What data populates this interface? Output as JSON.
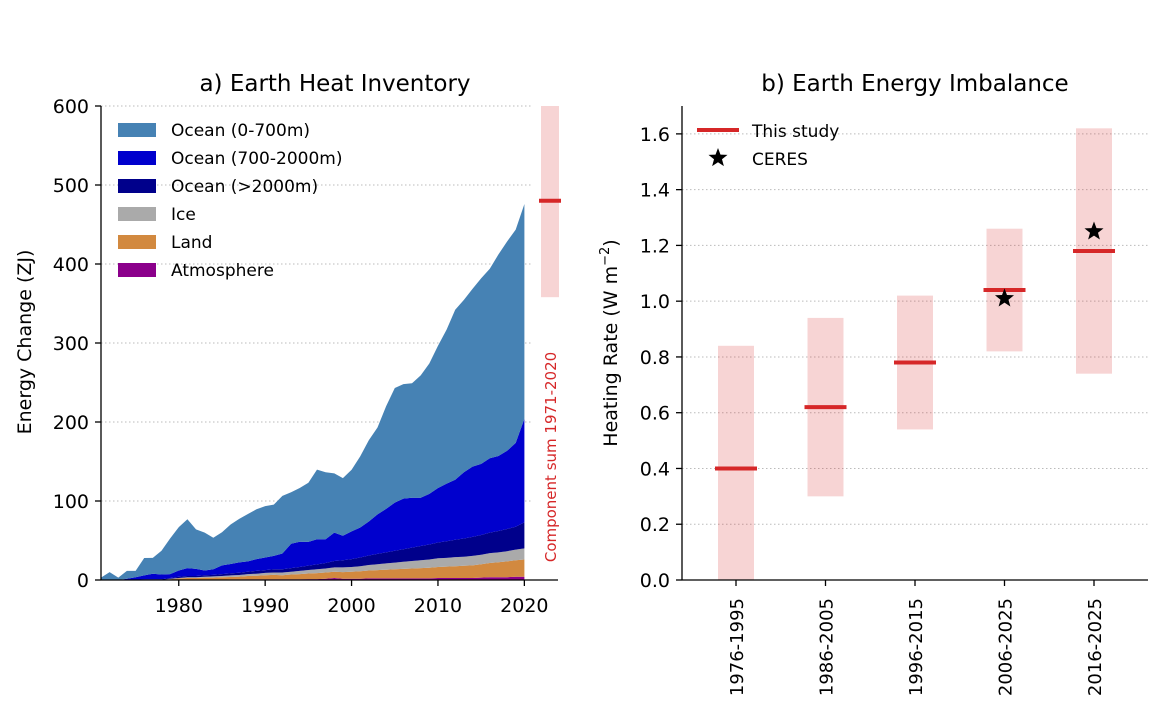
{
  "chart_data": [
    {
      "type": "area",
      "title": "a) Earth Heat Inventory",
      "xlabel": "",
      "ylabel": "Energy Change (ZJ)",
      "xlim": [
        1971,
        2021
      ],
      "ylim": [
        0,
        600
      ],
      "x_ticks": [
        1980,
        1990,
        2000,
        2010,
        2020
      ],
      "y_ticks": [
        0,
        100,
        200,
        300,
        400,
        500,
        600
      ],
      "grid": "horizontal dotted",
      "legend_position": "top-left",
      "stacked": true,
      "x": [
        1971,
        1972,
        1973,
        1974,
        1975,
        1976,
        1977,
        1978,
        1979,
        1980,
        1981,
        1982,
        1983,
        1984,
        1985,
        1986,
        1987,
        1988,
        1989,
        1990,
        1991,
        1992,
        1993,
        1994,
        1995,
        1996,
        1997,
        1998,
        1999,
        2000,
        2001,
        2002,
        2003,
        2004,
        2005,
        2006,
        2007,
        2008,
        2009,
        2010,
        2011,
        2012,
        2013,
        2014,
        2015,
        2016,
        2017,
        2018,
        2019,
        2020
      ],
      "series": [
        {
          "name": "Atmosphere",
          "color": "#8B008B",
          "values": [
            0,
            0,
            0,
            0,
            0,
            0,
            0,
            0,
            0,
            0.5,
            0.5,
            0.5,
            0.5,
            0.5,
            0.5,
            0.8,
            0.8,
            1,
            1,
            1,
            1,
            1,
            1,
            1,
            1.2,
            1.2,
            1.5,
            2.5,
            1.5,
            1.5,
            1.5,
            2,
            2,
            2,
            2,
            2,
            2,
            2,
            2,
            2.5,
            2.5,
            2.5,
            2.5,
            2.5,
            3,
            3.5,
            3.5,
            3.5,
            4,
            4
          ]
        },
        {
          "name": "Land",
          "color": "#D2893F",
          "values": [
            0,
            0,
            0,
            0,
            0,
            0,
            0,
            0,
            1,
            1.5,
            2,
            2,
            2.5,
            2.5,
            3,
            3,
            3.5,
            4,
            4.5,
            5,
            5.5,
            5,
            6,
            6.5,
            7,
            7.5,
            8,
            8,
            8.5,
            9,
            9.5,
            10,
            10.5,
            11,
            11.5,
            12,
            12.5,
            13,
            13.5,
            14,
            14.5,
            15,
            15.5,
            16,
            17,
            18,
            19,
            20,
            21,
            22
          ]
        },
        {
          "name": "Ice",
          "color": "#AAAAAA",
          "values": [
            0,
            0,
            0,
            0,
            0,
            0,
            0,
            0,
            0.5,
            0.5,
            1,
            1,
            1,
            1.5,
            1.5,
            2,
            2,
            2.5,
            2.5,
            3,
            3,
            3.5,
            3.5,
            4,
            4.5,
            5,
            5,
            5.5,
            6,
            6,
            6.5,
            7,
            7.5,
            8,
            8.5,
            9,
            9.5,
            10,
            10.5,
            11,
            11,
            11.5,
            11.5,
            12,
            12,
            12.5,
            12.5,
            13,
            13.5,
            14
          ]
        },
        {
          "name": "Ocean (>2000m)",
          "color": "#00008B",
          "values": [
            0,
            0,
            0,
            0.5,
            0.5,
            0.8,
            1,
            1,
            1,
            1.5,
            1.5,
            1.5,
            2,
            2,
            2.5,
            2.5,
            3,
            3,
            3.5,
            3.5,
            4,
            4,
            4.5,
            5,
            5.5,
            6,
            7,
            8,
            9,
            10,
            11,
            12,
            13,
            14,
            15,
            16,
            17,
            18,
            19,
            20,
            21,
            22,
            23,
            24,
            25,
            26,
            27,
            28,
            29,
            33
          ]
        },
        {
          "name": "Ocean (700-2000m)",
          "color": "#0000CD",
          "values": [
            0,
            0,
            0,
            1,
            3,
            5,
            7,
            6,
            5,
            8,
            10,
            9,
            6,
            7,
            11,
            12,
            13,
            13,
            15,
            16,
            17,
            20,
            31,
            32,
            30,
            32,
            30,
            36,
            31,
            35,
            38,
            43,
            50,
            55,
            61,
            64,
            63,
            61,
            64,
            69,
            73,
            76,
            84,
            89,
            90,
            94,
            95,
            99,
            106,
            131
          ]
        },
        {
          "name": "Ocean (0-700m)",
          "color": "#4682B4",
          "values": [
            3,
            10,
            3,
            10,
            8,
            22,
            20,
            30,
            45,
            55,
            62,
            50,
            48,
            40,
            42,
            50,
            55,
            60,
            63,
            65,
            65,
            73,
            65,
            68,
            75,
            88,
            85,
            75,
            73,
            78,
            90,
            103,
            110,
            130,
            145,
            145,
            145,
            155,
            165,
            180,
            195,
            215,
            218,
            225,
            235,
            240,
            255,
            265,
            270,
            272
          ]
        }
      ],
      "annotation_text": "Component sum 1971-2020",
      "component_sum": {
        "central": 480,
        "low": 358,
        "high": 600,
        "color": "#d62728"
      }
    },
    {
      "type": "bar",
      "title": "b) Earth Energy Imbalance",
      "xlabel": "",
      "ylabel": "Heating Rate (W m",
      "ylabel_sup": "−2",
      "ylabel_tail": ")",
      "ylim": [
        0.0,
        1.7
      ],
      "y_ticks": [
        "0.0",
        "0.2",
        "0.4",
        "0.6",
        "0.8",
        "1.0",
        "1.2",
        "1.4",
        "1.6"
      ],
      "grid": "horizontal dotted",
      "legend_position": "top-left",
      "categories": [
        "1976-1995",
        "1986-2005",
        "1996-2015",
        "2006-2025",
        "2016-2025"
      ],
      "series": [
        {
          "name": "This study",
          "color": "#d62728",
          "values": [
            0.4,
            0.62,
            0.78,
            1.04,
            1.18
          ],
          "low": [
            0.0,
            0.3,
            0.54,
            0.82,
            0.74
          ],
          "high": [
            0.84,
            0.94,
            1.02,
            1.26,
            1.62
          ]
        },
        {
          "name": "CERES",
          "color": "#000000",
          "points": [
            {
              "category": "2006-2025",
              "value": 1.01
            },
            {
              "category": "2016-2025",
              "value": 1.25
            }
          ]
        }
      ]
    }
  ]
}
